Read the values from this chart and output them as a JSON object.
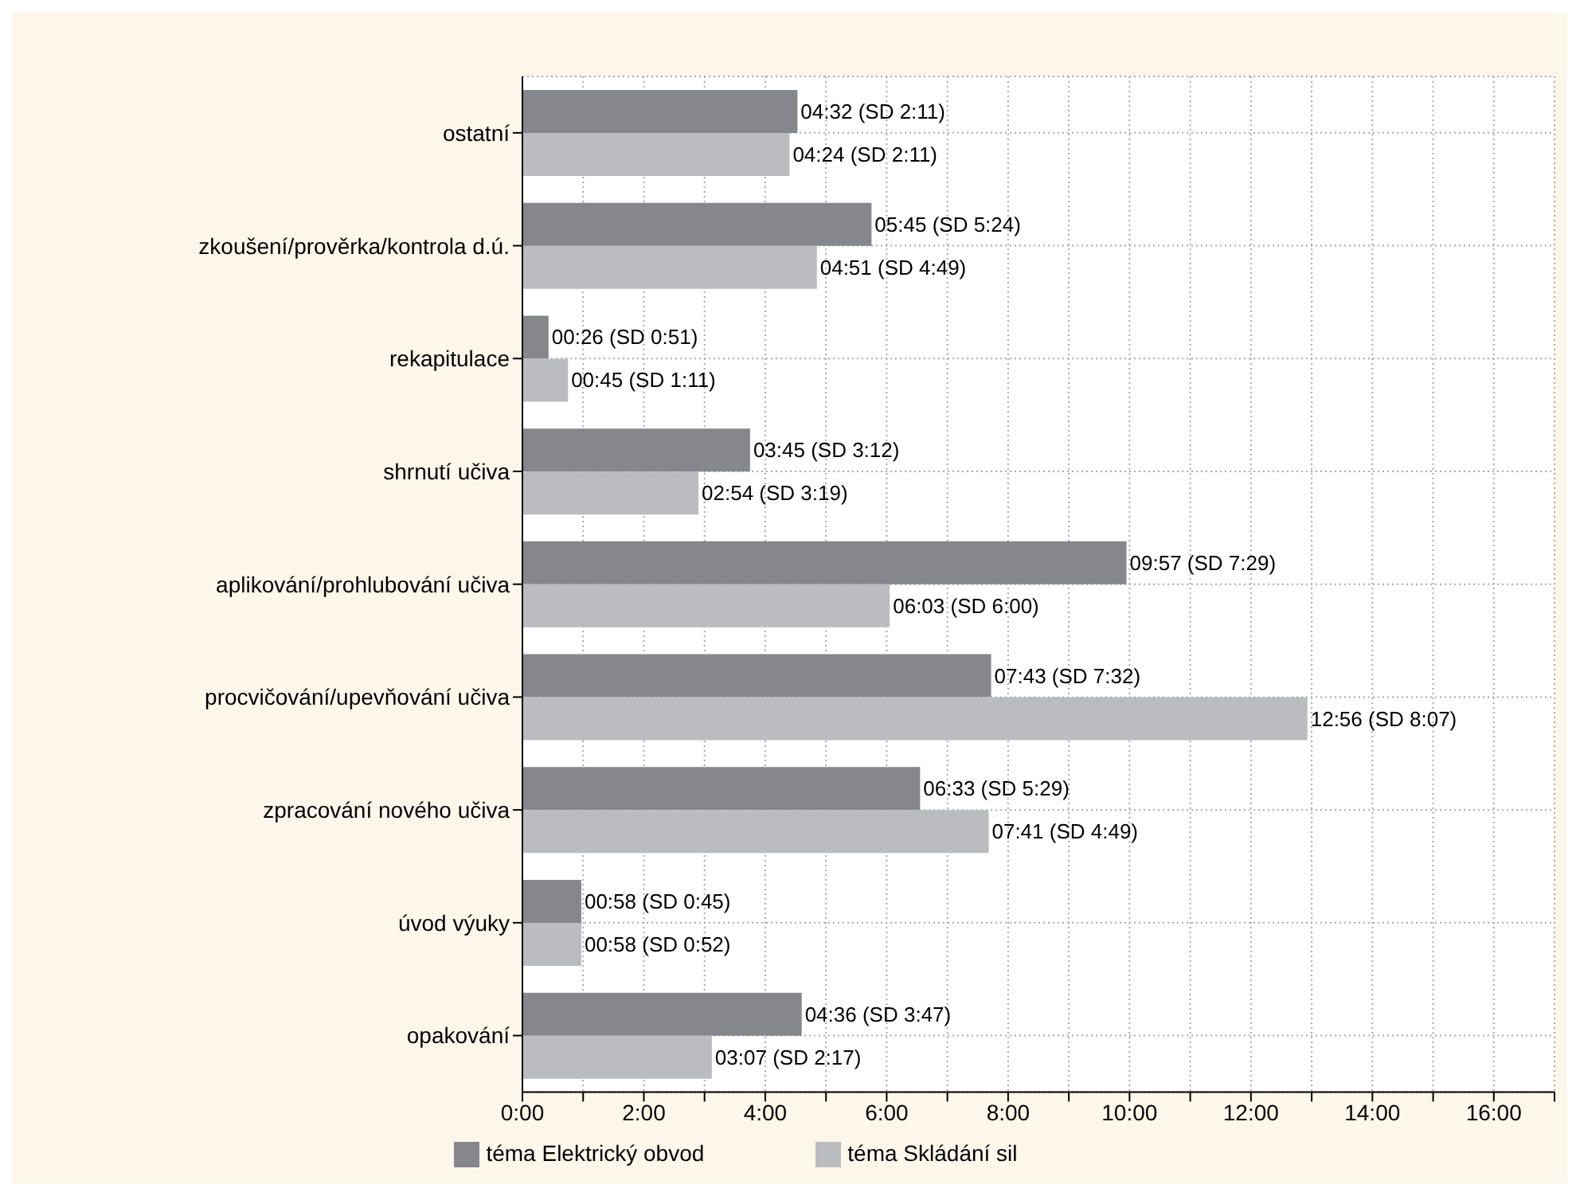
{
  "chart_data": {
    "type": "bar",
    "orientation": "horizontal",
    "categories": [
      "ostatní",
      "zkoušení/prověrka/kontrola d.ú.",
      "rekapitulace",
      "shrnutí učiva",
      "aplikování/prohlubování učiva",
      "procvičování/upevňování učiva",
      "zpracování nového učiva",
      "úvod výuky",
      "opakování"
    ],
    "series": [
      {
        "name": "téma Elektrický obvod",
        "color": "#86878c",
        "values": [
          4.53,
          5.75,
          0.43,
          3.75,
          9.95,
          7.72,
          6.55,
          0.97,
          4.6
        ],
        "value_labels": [
          "04:32 (SD 2:11)",
          "05:45 (SD 5:24)",
          "00:26 (SD 0:51)",
          "03:45 (SD 3:12)",
          "09:57 (SD 7:29)",
          "07:43 (SD 7:32)",
          "06:33 (SD 5:29)",
          "00:58 (SD 0:45)",
          "04:36 (SD 3:47)"
        ]
      },
      {
        "name": "téma Skládání sil",
        "color": "#bbbcc0",
        "values": [
          4.4,
          4.85,
          0.75,
          2.9,
          6.05,
          12.93,
          7.68,
          0.97,
          3.12
        ],
        "value_labels": [
          "04:24 (SD 2:11)",
          "04:51 (SD 4:49)",
          "00:45 (SD 1:11)",
          "02:54 (SD 3:19)",
          "06:03 (SD 6:00)",
          "12:56 (SD 8:07)",
          "07:41 (SD 4:49)",
          "00:58 (SD 0:52)",
          "03:07 (SD 2:17)"
        ]
      }
    ],
    "xlim": [
      0,
      17
    ],
    "xticks": [
      {
        "value": 0,
        "label": "0:00"
      },
      {
        "value": 1,
        "label": null
      },
      {
        "value": 2,
        "label": "2:00"
      },
      {
        "value": 3,
        "label": null
      },
      {
        "value": 4,
        "label": "4:00"
      },
      {
        "value": 5,
        "label": null
      },
      {
        "value": 6,
        "label": "6:00"
      },
      {
        "value": 7,
        "label": null
      },
      {
        "value": 8,
        "label": "8:00"
      },
      {
        "value": 9,
        "label": null
      },
      {
        "value": 10,
        "label": "10:00"
      },
      {
        "value": 11,
        "label": null
      },
      {
        "value": 12,
        "label": "12:00"
      },
      {
        "value": 13,
        "label": null
      },
      {
        "value": 14,
        "label": "14:00"
      },
      {
        "value": 15,
        "label": null
      },
      {
        "value": 16,
        "label": "16:00"
      },
      {
        "value": 17,
        "label": null
      }
    ],
    "grid": true,
    "legend": "bottom"
  }
}
